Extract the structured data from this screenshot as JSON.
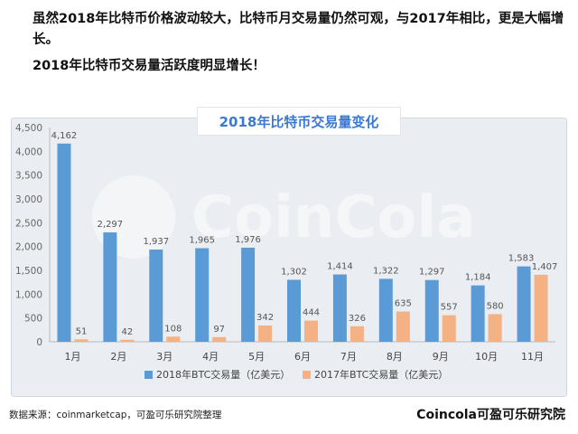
{
  "intro": {
    "line1": "虽然2018年比特币价格波动较大，比特币月交易量仍然可观，与2017年相比，更是大幅增长。",
    "line2": "2018年比特币交易量活跃度明显增长！"
  },
  "watermark": "CoinCola",
  "footer": {
    "source": "数据来源：coinmarketcap，可盈可乐研究院整理",
    "brand": "Coincola可盈可乐研究院"
  },
  "colors": {
    "series_2018": "#5b9bd5",
    "series_2017": "#f4b183",
    "title": "#3b78d1"
  },
  "chart_data": {
    "type": "bar",
    "title": "2018年比特币交易量变化",
    "categories": [
      "1月",
      "2月",
      "3月",
      "4月",
      "5月",
      "6月",
      "7月",
      "8月",
      "9月",
      "10月",
      "11月"
    ],
    "series": [
      {
        "name": "2018年BTC交易量（亿美元）",
        "values": [
          4162,
          2297,
          1937,
          1965,
          1976,
          1302,
          1414,
          1322,
          1297,
          1184,
          1583
        ]
      },
      {
        "name": "2017年BTC交易量（亿美元）",
        "values": [
          51,
          42,
          108,
          97,
          342,
          444,
          326,
          635,
          557,
          580,
          1407
        ]
      }
    ],
    "ylim": [
      0,
      4500
    ],
    "yticks": [
      "0",
      "500",
      "1,000",
      "1,500",
      "2,000",
      "2,500",
      "3,000",
      "3,500",
      "4,000",
      "4,500"
    ],
    "grid": false,
    "legend_position": "bottom"
  }
}
